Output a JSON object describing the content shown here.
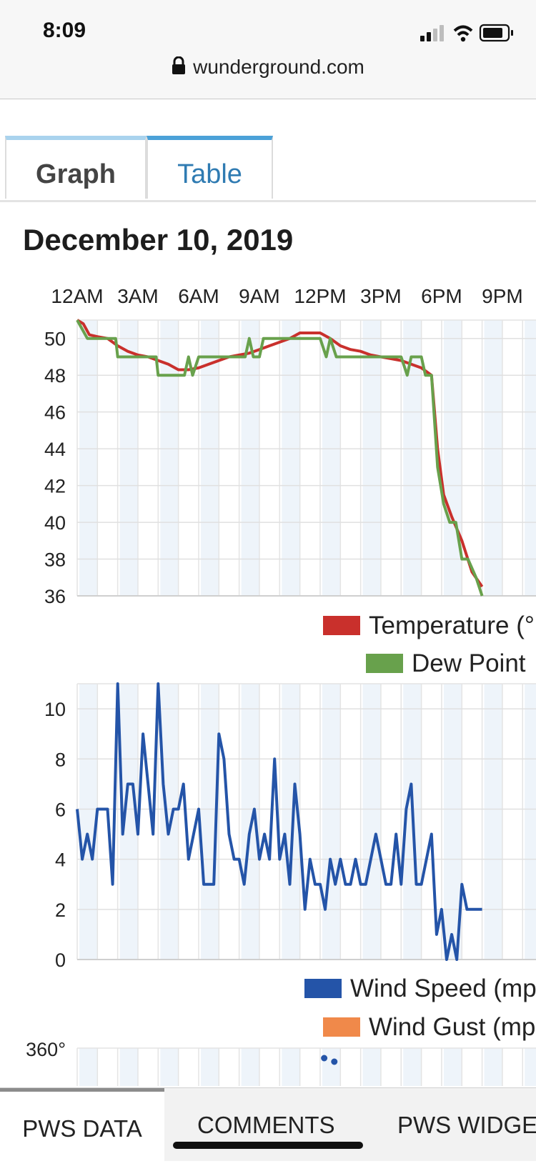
{
  "status_bar": {
    "time": "8:09",
    "url": "wunderground.com"
  },
  "tabs": [
    {
      "label": "Graph",
      "active": true
    },
    {
      "label": "Table",
      "active": false
    }
  ],
  "date_title": "December 10, 2019",
  "time_labels": [
    "12AM",
    "3AM",
    "6AM",
    "9AM",
    "12PM",
    "3PM",
    "6PM",
    "9PM"
  ],
  "chart_data": [
    {
      "type": "line",
      "x_unit": "hours since midnight",
      "xlim": [
        0,
        23
      ],
      "ylim": [
        36,
        51
      ],
      "yticks": [
        36,
        38,
        40,
        42,
        44,
        46,
        48,
        50
      ],
      "xticks": [
        "12AM",
        "3AM",
        "6AM",
        "9AM",
        "12PM",
        "3PM",
        "6PM",
        "9PM"
      ],
      "grid": true,
      "series": [
        {
          "name": "Temperature (°",
          "color": "#c9302c",
          "points": [
            [
              0,
              51
            ],
            [
              0.3,
              50.8
            ],
            [
              0.6,
              50.2
            ],
            [
              1,
              50.1
            ],
            [
              1.5,
              50
            ],
            [
              2,
              49.6
            ],
            [
              2.5,
              49.3
            ],
            [
              3,
              49.1
            ],
            [
              3.5,
              49
            ],
            [
              4,
              48.8
            ],
            [
              4.5,
              48.6
            ],
            [
              5,
              48.3
            ],
            [
              5.5,
              48.3
            ],
            [
              6,
              48.4
            ],
            [
              6.5,
              48.6
            ],
            [
              7,
              48.8
            ],
            [
              7.5,
              49
            ],
            [
              8,
              49.1
            ],
            [
              8.5,
              49.2
            ],
            [
              9,
              49.4
            ],
            [
              9.5,
              49.6
            ],
            [
              10,
              49.8
            ],
            [
              10.5,
              50
            ],
            [
              11,
              50.3
            ],
            [
              11.5,
              50.3
            ],
            [
              12,
              50.3
            ],
            [
              12.5,
              50
            ],
            [
              13,
              49.6
            ],
            [
              13.5,
              49.4
            ],
            [
              14,
              49.3
            ],
            [
              14.5,
              49.1
            ],
            [
              15,
              49
            ],
            [
              15.5,
              48.9
            ],
            [
              16,
              48.8
            ],
            [
              16.5,
              48.6
            ],
            [
              17,
              48.4
            ],
            [
              17.5,
              48
            ],
            [
              17.8,
              44
            ],
            [
              18.1,
              41.5
            ],
            [
              18.5,
              40.3
            ],
            [
              19,
              39
            ],
            [
              19.5,
              37.3
            ],
            [
              20,
              36.5
            ]
          ]
        },
        {
          "name": "Dew Point",
          "color": "#68a14c",
          "points": [
            [
              0,
              51
            ],
            [
              0.5,
              50
            ],
            [
              1,
              50
            ],
            [
              1.5,
              50
            ],
            [
              1.9,
              50
            ],
            [
              2,
              49
            ],
            [
              2.5,
              49
            ],
            [
              3,
              49
            ],
            [
              3.5,
              49
            ],
            [
              3.9,
              49
            ],
            [
              4,
              48
            ],
            [
              4.5,
              48
            ],
            [
              5,
              48
            ],
            [
              5.3,
              48
            ],
            [
              5.5,
              49
            ],
            [
              5.7,
              48
            ],
            [
              6,
              49
            ],
            [
              6.5,
              49
            ],
            [
              7,
              49
            ],
            [
              7.5,
              49
            ],
            [
              8,
              49
            ],
            [
              8.3,
              49
            ],
            [
              8.5,
              50
            ],
            [
              8.7,
              49
            ],
            [
              9,
              49
            ],
            [
              9.2,
              50
            ],
            [
              9.5,
              50
            ],
            [
              10,
              50
            ],
            [
              10.5,
              50
            ],
            [
              11,
              50
            ],
            [
              11.5,
              50
            ],
            [
              12,
              50
            ],
            [
              12.3,
              49
            ],
            [
              12.5,
              50
            ],
            [
              12.8,
              49
            ],
            [
              13,
              49
            ],
            [
              13.5,
              49
            ],
            [
              14,
              49
            ],
            [
              14.5,
              49
            ],
            [
              15,
              49
            ],
            [
              15.5,
              49
            ],
            [
              16,
              49
            ],
            [
              16.3,
              48
            ],
            [
              16.5,
              49
            ],
            [
              17,
              49
            ],
            [
              17.2,
              48
            ],
            [
              17.5,
              48
            ],
            [
              17.8,
              43
            ],
            [
              18.1,
              41
            ],
            [
              18.4,
              40
            ],
            [
              18.7,
              40
            ],
            [
              19,
              38
            ],
            [
              19.3,
              38
            ],
            [
              19.7,
              37
            ],
            [
              20,
              36
            ]
          ]
        }
      ]
    },
    {
      "type": "line",
      "x_unit": "hours since midnight",
      "xlim": [
        0,
        23
      ],
      "ylim": [
        0,
        11
      ],
      "yticks": [
        0,
        2,
        4,
        6,
        8,
        10
      ],
      "xticks": [
        "12AM",
        "3AM",
        "6AM",
        "9AM",
        "12PM",
        "3PM",
        "6PM",
        "9PM"
      ],
      "grid": true,
      "series": [
        {
          "name": "Wind Speed (mp",
          "color": "#2454a8",
          "points": [
            [
              0,
              6
            ],
            [
              0.25,
              4
            ],
            [
              0.5,
              5
            ],
            [
              0.75,
              4
            ],
            [
              1,
              6
            ],
            [
              1.25,
              6
            ],
            [
              1.5,
              6
            ],
            [
              1.75,
              3
            ],
            [
              2,
              11
            ],
            [
              2.25,
              5
            ],
            [
              2.5,
              7
            ],
            [
              2.75,
              7
            ],
            [
              3,
              5
            ],
            [
              3.25,
              9
            ],
            [
              3.5,
              7
            ],
            [
              3.75,
              5
            ],
            [
              4,
              11
            ],
            [
              4.25,
              7
            ],
            [
              4.5,
              5
            ],
            [
              4.75,
              6
            ],
            [
              5,
              6
            ],
            [
              5.25,
              7
            ],
            [
              5.5,
              4
            ],
            [
              5.75,
              5
            ],
            [
              6,
              6
            ],
            [
              6.25,
              3
            ],
            [
              6.5,
              3
            ],
            [
              6.75,
              3
            ],
            [
              7,
              9
            ],
            [
              7.25,
              8
            ],
            [
              7.5,
              5
            ],
            [
              7.75,
              4
            ],
            [
              8,
              4
            ],
            [
              8.25,
              3
            ],
            [
              8.5,
              5
            ],
            [
              8.75,
              6
            ],
            [
              9,
              4
            ],
            [
              9.25,
              5
            ],
            [
              9.5,
              4
            ],
            [
              9.75,
              8
            ],
            [
              10,
              4
            ],
            [
              10.25,
              5
            ],
            [
              10.5,
              3
            ],
            [
              10.75,
              7
            ],
            [
              11,
              5
            ],
            [
              11.25,
              2
            ],
            [
              11.5,
              4
            ],
            [
              11.75,
              3
            ],
            [
              12,
              3
            ],
            [
              12.25,
              2
            ],
            [
              12.5,
              4
            ],
            [
              12.75,
              3
            ],
            [
              13,
              4
            ],
            [
              13.25,
              3
            ],
            [
              13.5,
              3
            ],
            [
              13.75,
              4
            ],
            [
              14,
              3
            ],
            [
              14.25,
              3
            ],
            [
              14.5,
              4
            ],
            [
              14.75,
              5
            ],
            [
              15,
              4
            ],
            [
              15.25,
              3
            ],
            [
              15.5,
              3
            ],
            [
              15.75,
              5
            ],
            [
              16,
              3
            ],
            [
              16.25,
              6
            ],
            [
              16.5,
              7
            ],
            [
              16.75,
              3
            ],
            [
              17,
              3
            ],
            [
              17.25,
              4
            ],
            [
              17.5,
              5
            ],
            [
              17.75,
              1
            ],
            [
              18,
              2
            ],
            [
              18.25,
              0
            ],
            [
              18.5,
              1
            ],
            [
              18.75,
              0
            ],
            [
              19,
              3
            ],
            [
              19.25,
              2
            ],
            [
              19.5,
              2
            ],
            [
              19.75,
              2
            ],
            [
              20,
              2
            ]
          ]
        },
        {
          "name": "Wind Gust (mp",
          "color": "#f0894a",
          "points": []
        }
      ]
    },
    {
      "type": "scatter",
      "x_unit": "hours since midnight",
      "ylim": [
        0,
        360
      ],
      "y_top_label": "360°",
      "grid": true,
      "series": [
        {
          "name": "",
          "color": "#2454a8",
          "points": [
            [
              12.2,
              346
            ],
            [
              12.7,
              341
            ]
          ]
        }
      ]
    }
  ],
  "bottom_tabs": [
    {
      "label": "PWS DATA",
      "active": true
    },
    {
      "label": "COMMENTS",
      "active": false
    },
    {
      "label": "PWS WIDGE",
      "active": false
    }
  ]
}
